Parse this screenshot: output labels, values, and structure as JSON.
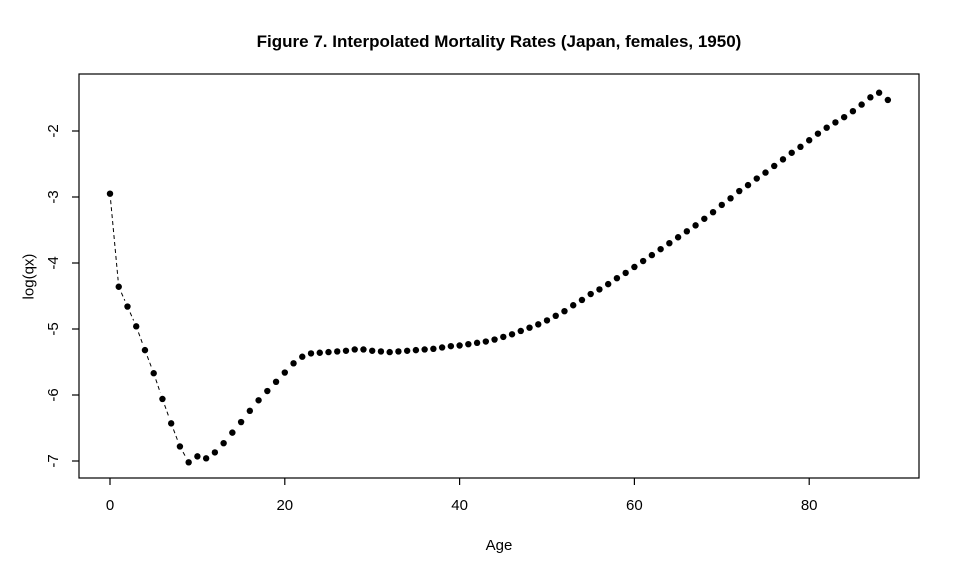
{
  "chart_data": {
    "type": "scatter",
    "title": "Figure 7. Interpolated Mortality Rates (Japan, females, 1950)",
    "xlabel": "Age",
    "ylabel": "log(qx)",
    "x_ticks": [
      0,
      20,
      40,
      60,
      80
    ],
    "y_ticks": [
      -2,
      -3,
      -4,
      -5,
      -6,
      -7
    ],
    "xlim": [
      -3.5,
      92.5
    ],
    "ylim": [
      -7.26,
      -1.14
    ],
    "grid": false,
    "legend": "none",
    "point_color": "#000000",
    "point_shape": "filled-circle",
    "connector_style": "dashed-between-points",
    "ages": [
      0,
      1,
      2,
      3,
      4,
      5,
      6,
      7,
      8,
      9,
      10,
      11,
      12,
      13,
      14,
      15,
      16,
      17,
      18,
      19,
      20,
      21,
      22,
      23,
      24,
      25,
      26,
      27,
      28,
      29,
      30,
      31,
      32,
      33,
      34,
      35,
      36,
      37,
      38,
      39,
      40,
      41,
      42,
      43,
      44,
      45,
      46,
      47,
      48,
      49,
      50,
      51,
      52,
      53,
      54,
      55,
      56,
      57,
      58,
      59,
      60,
      61,
      62,
      63,
      64,
      65,
      66,
      67,
      68,
      69,
      70,
      71,
      72,
      73,
      74,
      75,
      76,
      77,
      78,
      79,
      80,
      81,
      82,
      83,
      84,
      85,
      86,
      87,
      88,
      89
    ],
    "log_qx": [
      -2.95,
      -4.36,
      -4.66,
      -4.96,
      -5.32,
      -5.67,
      -6.06,
      -6.43,
      -6.78,
      -7.02,
      -6.93,
      -6.96,
      -6.87,
      -6.73,
      -6.57,
      -6.41,
      -6.24,
      -6.08,
      -5.94,
      -5.8,
      -5.66,
      -5.52,
      -5.42,
      -5.37,
      -5.36,
      -5.35,
      -5.34,
      -5.33,
      -5.31,
      -5.31,
      -5.33,
      -5.34,
      -5.35,
      -5.34,
      -5.33,
      -5.32,
      -5.31,
      -5.3,
      -5.28,
      -5.26,
      -5.25,
      -5.23,
      -5.21,
      -5.19,
      -5.16,
      -5.12,
      -5.08,
      -5.03,
      -4.98,
      -4.93,
      -4.87,
      -4.8,
      -4.73,
      -4.64,
      -4.56,
      -4.47,
      -4.4,
      -4.32,
      -4.23,
      -4.15,
      -4.06,
      -3.97,
      -3.88,
      -3.79,
      -3.7,
      -3.61,
      -3.52,
      -3.43,
      -3.33,
      -3.23,
      -3.12,
      -3.02,
      -2.91,
      -2.82,
      -2.72,
      -2.63,
      -2.53,
      -2.43,
      -2.33,
      -2.24,
      -2.14,
      -2.04,
      -1.95,
      -1.87,
      -1.79,
      -1.7,
      -1.6,
      -1.49,
      -1.42,
      -1.53
    ]
  }
}
